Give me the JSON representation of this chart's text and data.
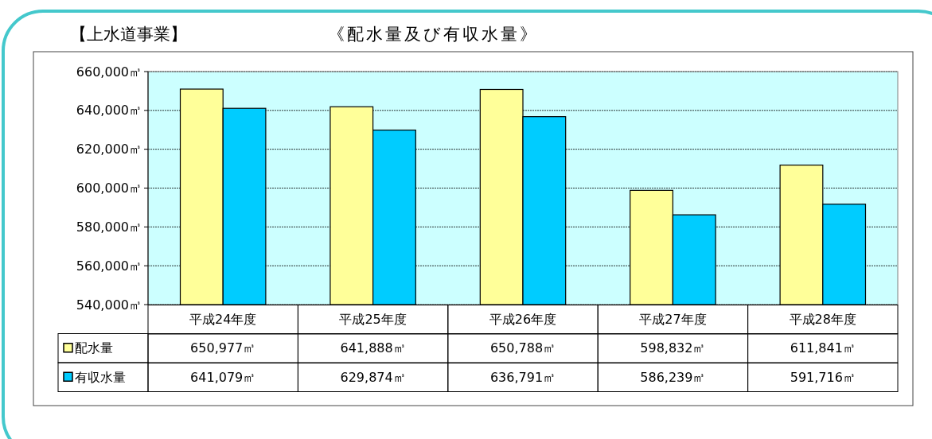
{
  "chart_data": {
    "type": "bar",
    "title": "《配水量及び有収水量》",
    "subtitle": "【上水道事業】",
    "categories": [
      "平成24年度",
      "平成25年度",
      "平成26年度",
      "平成27年度",
      "平成28年度"
    ],
    "series": [
      {
        "name": "配水量",
        "color": "#ffff99",
        "values": [
          650977,
          641888,
          650788,
          598832,
          611841
        ],
        "value_labels": [
          "650,977㎥",
          "641,888㎥",
          "650,788㎥",
          "598,832㎥",
          "611,841㎥"
        ]
      },
      {
        "name": "有収水量",
        "color": "#00ccff",
        "values": [
          641079,
          629874,
          636791,
          586239,
          591716
        ],
        "value_labels": [
          "641,079㎥",
          "629,874㎥",
          "636,791㎥",
          "586,239㎥",
          "591,716㎥"
        ]
      }
    ],
    "ylim": [
      540000,
      660000
    ],
    "yticks": [
      {
        "value": 540000,
        "label": "540,000㎥"
      },
      {
        "value": 560000,
        "label": "560,000㎥"
      },
      {
        "value": 580000,
        "label": "580,000㎥"
      },
      {
        "value": 600000,
        "label": "600,000㎥"
      },
      {
        "value": 620000,
        "label": "620,000㎥"
      },
      {
        "value": 640000,
        "label": "640,000㎥"
      },
      {
        "value": 660000,
        "label": "660,000㎥"
      }
    ],
    "grid": "y",
    "legend": "bottom"
  }
}
